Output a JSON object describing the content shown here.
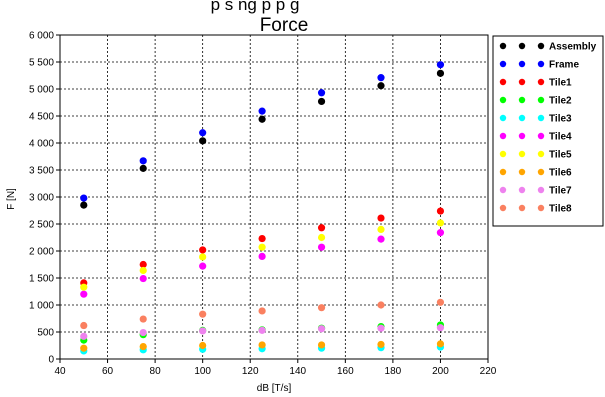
{
  "chart_data": {
    "type": "scatter",
    "title_top_partial": "p   s   ng p          p           g",
    "title": "Force",
    "xlabel": "dB [T/s]",
    "ylabel": "F [N]",
    "xlim": [
      40,
      220
    ],
    "ylim": [
      0,
      6000
    ],
    "x_ticks": [
      40,
      60,
      80,
      100,
      120,
      140,
      160,
      180,
      200,
      220
    ],
    "y_ticks": [
      0,
      500,
      1000,
      1500,
      2000,
      2500,
      3000,
      3500,
      4000,
      4500,
      5000,
      5500,
      6000
    ],
    "y_tick_labels": [
      "0",
      "500",
      "1 000",
      "1 500",
      "2 000",
      "2 500",
      "3 000",
      "3 500",
      "4 000",
      "4 500",
      "5 000",
      "5 500",
      "6 000"
    ],
    "grid": true,
    "legend_position": "right",
    "x": [
      50,
      75,
      100,
      125,
      150,
      175,
      200
    ],
    "series": [
      {
        "name": "Assembly",
        "color": "#000000",
        "values": [
          2850,
          3530,
          4040,
          4440,
          4770,
          5060,
          5290
        ]
      },
      {
        "name": "Frame",
        "color": "#0000ff",
        "values": [
          2980,
          3670,
          4190,
          4590,
          4930,
          5210,
          5450
        ]
      },
      {
        "name": "Tile1",
        "color": "#ff0000",
        "values": [
          1410,
          1750,
          2020,
          2230,
          2430,
          2610,
          2740
        ]
      },
      {
        "name": "Tile2",
        "color": "#00ff00",
        "values": [
          350,
          450,
          530,
          540,
          570,
          600,
          630
        ]
      },
      {
        "name": "Tile3",
        "color": "#00ffff",
        "values": [
          150,
          170,
          180,
          190,
          200,
          210,
          220
        ]
      },
      {
        "name": "Tile4",
        "color": "#ff00ff",
        "values": [
          1200,
          1490,
          1720,
          1900,
          2070,
          2220,
          2340
        ]
      },
      {
        "name": "Tile5",
        "color": "#ffff00",
        "values": [
          1330,
          1640,
          1890,
          2070,
          2250,
          2400,
          2520
        ]
      },
      {
        "name": "Tile6",
        "color": "#ffa500",
        "values": [
          200,
          230,
          250,
          260,
          260,
          270,
          280
        ]
      },
      {
        "name": "Tile7",
        "color": "#ee82ee",
        "values": [
          420,
          490,
          520,
          530,
          560,
          570,
          580
        ]
      },
      {
        "name": "Tile8",
        "color": "#fa8060",
        "values": [
          620,
          740,
          830,
          890,
          950,
          1000,
          1050
        ]
      }
    ]
  }
}
